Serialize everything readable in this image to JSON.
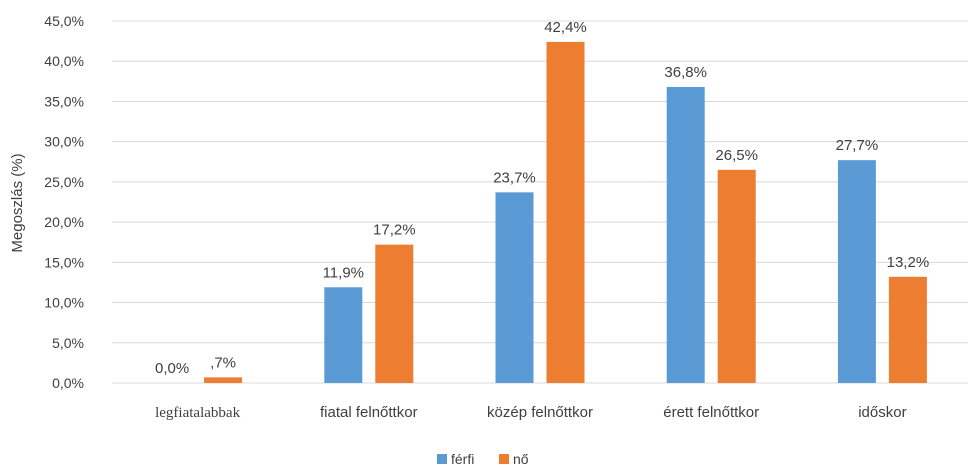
{
  "chart_data": {
    "type": "bar",
    "ylabel": "Megoszlás (%)",
    "xlabel": "",
    "ylim": [
      0,
      45
    ],
    "yticks": [
      0,
      5,
      10,
      15,
      20,
      25,
      30,
      35,
      40,
      45
    ],
    "ytick_labels": [
      "0,0%",
      "5,0%",
      "10,0%",
      "15,0%",
      "20,0%",
      "25,0%",
      "30,0%",
      "35,0%",
      "40,0%",
      "45,0%"
    ],
    "grid": "horizontal",
    "legend_position": "bottom",
    "categories": [
      "legfiatalabbak",
      "fiatal felnőttkor",
      "közép felnőttkor",
      "érett felnőttkor",
      "időskor"
    ],
    "series": [
      {
        "name": "férfi",
        "color": "#5B9BD5",
        "values": [
          0.0,
          11.9,
          23.7,
          36.8,
          27.7
        ],
        "labels": [
          "0,0%",
          "11,9%",
          "23,7%",
          "36,8%",
          "27,7%"
        ]
      },
      {
        "name": "nő",
        "color": "#ED7D31",
        "values": [
          0.7,
          17.2,
          42.4,
          26.5,
          13.2
        ],
        "labels": [
          ",7%",
          "17,2%",
          "42,4%",
          "26,5%",
          "13,2%"
        ]
      }
    ]
  }
}
